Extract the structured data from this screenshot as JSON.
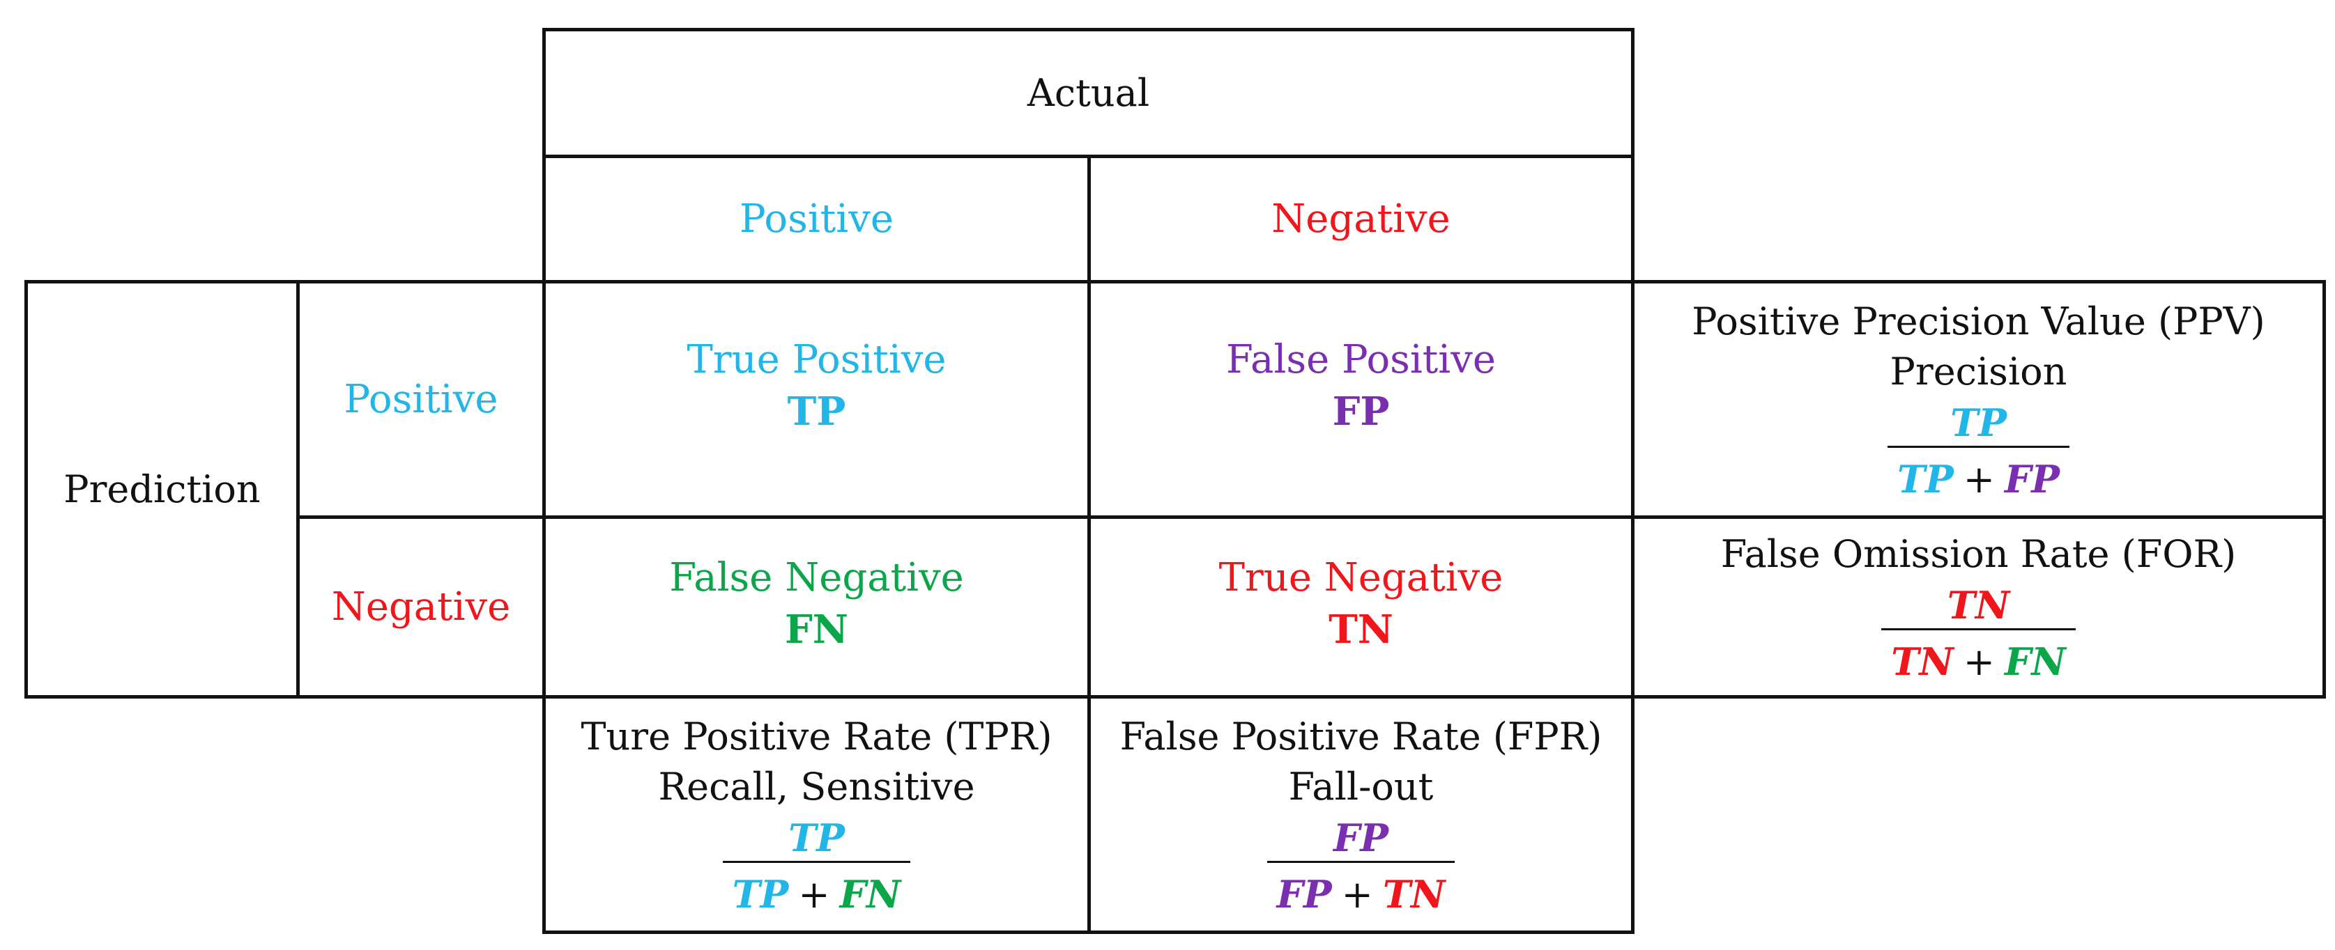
{
  "header": {
    "actual": "Actual"
  },
  "columns": {
    "positive": "Positive",
    "negative": "Negative"
  },
  "rows": {
    "axis_label": "Prediction",
    "positive": "Positive",
    "negative": "Negative"
  },
  "cells": {
    "tp": {
      "name": "True Positive",
      "abbr": "TP"
    },
    "fp": {
      "name": "False Positive",
      "abbr": "FP"
    },
    "fn": {
      "name": "False Negative",
      "abbr": "FN"
    },
    "tn": {
      "name": "True Negative",
      "abbr": "TN"
    }
  },
  "metrics": {
    "ppv": {
      "line1": "Positive Precision Value (PPV)",
      "line2": "Precision",
      "numerator": "TP",
      "denominator_a": "TP",
      "plus": "+",
      "denominator_b": "FP"
    },
    "for": {
      "line1": "False Omission Rate (FOR)",
      "numerator": "TN",
      "denominator_a": "TN",
      "plus": "+",
      "denominator_b": "FN"
    },
    "tpr": {
      "line1": "Ture Positive Rate (TPR)",
      "line2": "Recall, Sensitive",
      "numerator": "TP",
      "denominator_a": "TP",
      "plus": "+",
      "denominator_b": "FN"
    },
    "fpr": {
      "line1": "False Positive Rate (FPR)",
      "line2": "Fall-out",
      "numerator": "FP",
      "denominator_a": "FP",
      "plus": "+",
      "denominator_b": "TN"
    }
  },
  "colors": {
    "positive": "#21b5e8",
    "negative": "#f0161c",
    "false_positive": "#7a2fb0",
    "false_negative": "#0ca64a"
  }
}
